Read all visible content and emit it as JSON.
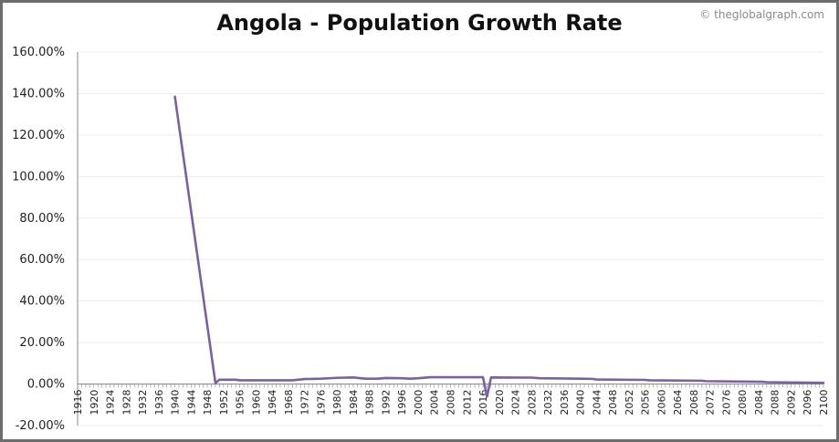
{
  "watermark": "© theglobalgraph.com",
  "colors": {
    "line": "#7a619f",
    "grid": "#ececec",
    "axis": "#888888"
  },
  "chart_data": {
    "type": "line",
    "title": "Angola - Population Growth Rate",
    "xlabel": "",
    "ylabel": "",
    "xlim": [
      1916,
      2100
    ],
    "ylim": [
      -20,
      160
    ],
    "yticks": [
      -20,
      0,
      20,
      40,
      60,
      80,
      100,
      120,
      140,
      160
    ],
    "ytick_labels": [
      "-20.00%",
      "0.00%",
      "20.00%",
      "40.00%",
      "60.00%",
      "80.00%",
      "100.00%",
      "120.00%",
      "140.00%",
      "160.00%"
    ],
    "xticks": [
      1916,
      1920,
      1924,
      1928,
      1932,
      1936,
      1940,
      1944,
      1948,
      1952,
      1956,
      1960,
      1964,
      1968,
      1972,
      1976,
      1980,
      1984,
      1988,
      1992,
      1996,
      2000,
      2004,
      2008,
      2012,
      2016,
      2020,
      2024,
      2028,
      2032,
      2036,
      2040,
      2044,
      2048,
      2052,
      2056,
      2060,
      2064,
      2068,
      2072,
      2076,
      2080,
      2084,
      2088,
      2092,
      2096,
      2100
    ],
    "grid": true,
    "series": [
      {
        "values_unit": "percent",
        "points": [
          [
            1940,
            138.5
          ],
          [
            1950,
            0.5
          ],
          [
            1951,
            2.1
          ],
          [
            1955,
            2.1
          ],
          [
            1956,
            1.8
          ],
          [
            1969,
            1.8
          ],
          [
            1972,
            2.4
          ],
          [
            1976,
            2.6
          ],
          [
            1980,
            3.0
          ],
          [
            1984,
            3.2
          ],
          [
            1987,
            2.6
          ],
          [
            1990,
            2.6
          ],
          [
            1992,
            2.9
          ],
          [
            1996,
            2.8
          ],
          [
            1998,
            2.6
          ],
          [
            2000,
            2.8
          ],
          [
            2003,
            3.3
          ],
          [
            2016,
            3.3
          ],
          [
            2017,
            -6.0
          ],
          [
            2018,
            3.2
          ],
          [
            2028,
            3.1
          ],
          [
            2030,
            2.8
          ],
          [
            2043,
            2.5
          ],
          [
            2044,
            2.2
          ],
          [
            2056,
            2.0
          ],
          [
            2057,
            1.8
          ],
          [
            2070,
            1.6
          ],
          [
            2071,
            1.4
          ],
          [
            2085,
            1.1
          ],
          [
            2086,
            0.9
          ],
          [
            2100,
            0.6
          ]
        ]
      }
    ]
  }
}
